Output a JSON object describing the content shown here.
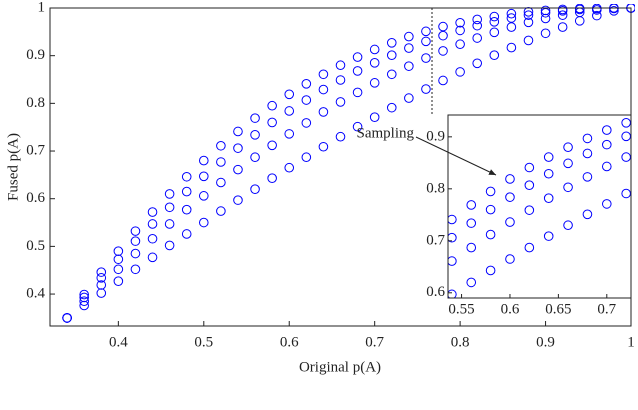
{
  "chart_data": {
    "type": "scatter",
    "xlabel": "Original p(A)",
    "ylabel": "Fused p(A)",
    "marker": "circle",
    "xlim": [
      0.32,
      1
    ],
    "ylim": [
      0.333,
      1
    ],
    "xticks": [
      0.4,
      0.5,
      0.6,
      0.7,
      0.8,
      0.9,
      1
    ],
    "yticks": [
      0.4,
      0.5,
      0.6,
      0.7,
      0.8,
      0.9,
      1
    ],
    "x": [
      0.34,
      0.36,
      0.38,
      0.4,
      0.42,
      0.44,
      0.46,
      0.48,
      0.5,
      0.52,
      0.54,
      0.56,
      0.58,
      0.6,
      0.62,
      0.64,
      0.66,
      0.68,
      0.7,
      0.72,
      0.74,
      0.76,
      0.78,
      0.8,
      0.82,
      0.84,
      0.86,
      0.88,
      0.9,
      0.92,
      0.94,
      0.96,
      0.98,
      1.0
    ],
    "series": [
      {
        "color": "#0000ff",
        "values": [
          0.35,
          0.399,
          0.446,
          0.49,
          0.532,
          0.572,
          0.61,
          0.646,
          0.68,
          0.711,
          0.741,
          0.769,
          0.795,
          0.819,
          0.841,
          0.861,
          0.88,
          0.897,
          0.913,
          0.927,
          0.94,
          0.951,
          0.961,
          0.969,
          0.976,
          0.982,
          0.988,
          0.992,
          0.995,
          0.997,
          0.999,
          0.999,
          1.0,
          1.0
        ]
      },
      {
        "color": "#0000ff",
        "values": [
          0.35,
          0.393,
          0.434,
          0.473,
          0.511,
          0.547,
          0.582,
          0.615,
          0.647,
          0.677,
          0.706,
          0.734,
          0.76,
          0.784,
          0.807,
          0.829,
          0.849,
          0.868,
          0.885,
          0.901,
          0.916,
          0.93,
          0.942,
          0.953,
          0.963,
          0.971,
          0.979,
          0.985,
          0.99,
          0.994,
          0.997,
          0.999,
          1.0,
          1.0
        ]
      },
      {
        "color": "#0000ff",
        "values": [
          0.35,
          0.385,
          0.419,
          0.452,
          0.485,
          0.516,
          0.547,
          0.577,
          0.606,
          0.634,
          0.661,
          0.687,
          0.712,
          0.736,
          0.759,
          0.782,
          0.803,
          0.823,
          0.843,
          0.861,
          0.878,
          0.895,
          0.91,
          0.924,
          0.937,
          0.949,
          0.96,
          0.97,
          0.978,
          0.985,
          0.991,
          0.996,
          0.999,
          1.0
        ]
      },
      {
        "color": "#0000ff",
        "values": [
          0.35,
          0.376,
          0.402,
          0.427,
          0.452,
          0.477,
          0.502,
          0.526,
          0.55,
          0.574,
          0.597,
          0.62,
          0.643,
          0.665,
          0.687,
          0.709,
          0.73,
          0.751,
          0.771,
          0.791,
          0.811,
          0.83,
          0.848,
          0.866,
          0.884,
          0.901,
          0.917,
          0.932,
          0.947,
          0.96,
          0.973,
          0.984,
          0.994,
          1.0
        ]
      }
    ],
    "inset": {
      "xlim": [
        0.536,
        0.725
      ],
      "ylim": [
        0.59,
        0.942
      ],
      "xticks": [
        0.55,
        0.6,
        0.65,
        0.7
      ],
      "yticks": [
        0.6,
        0.7,
        0.8,
        0.9
      ]
    },
    "annotation": "Sampling"
  }
}
